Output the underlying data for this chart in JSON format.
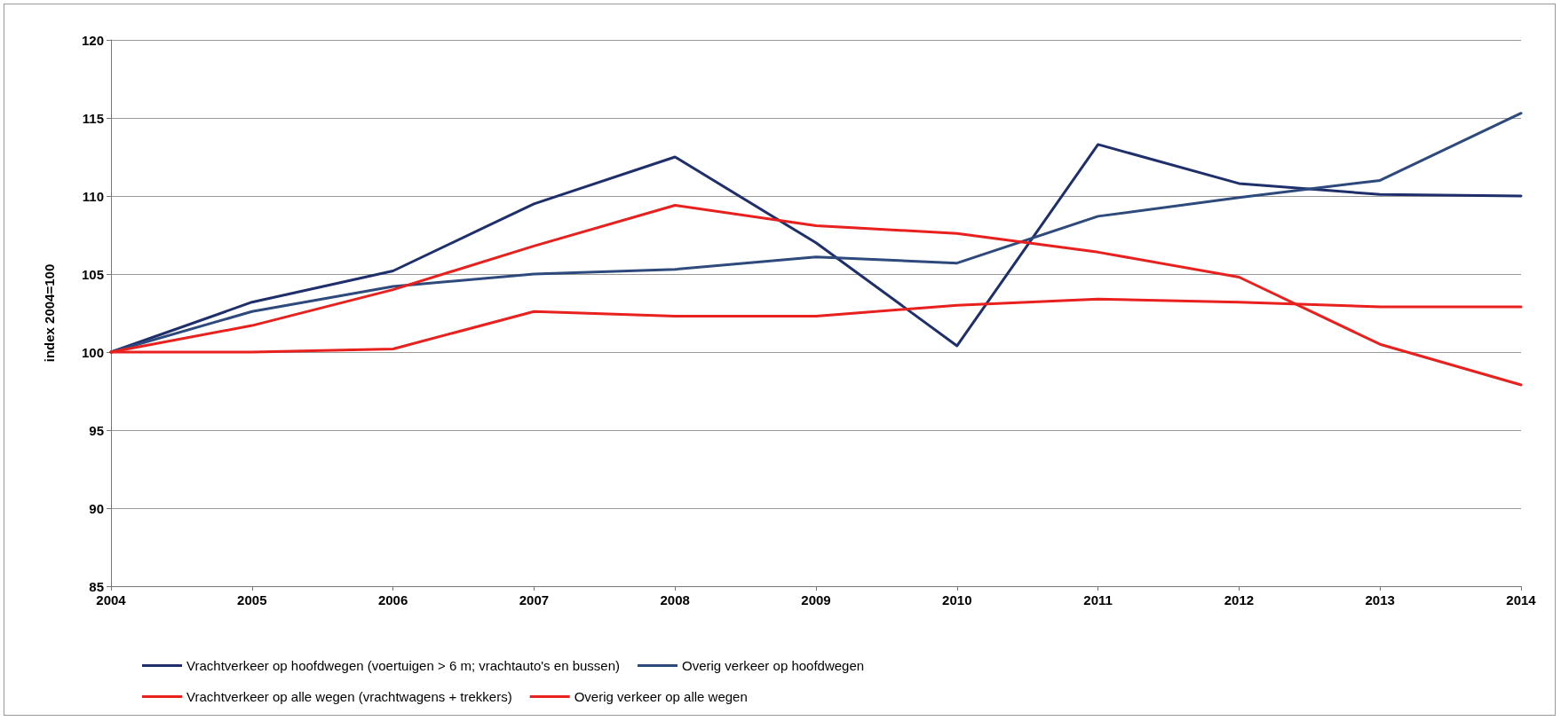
{
  "chart_data": {
    "type": "line",
    "ylabel": "index 2004=100",
    "categories": [
      "2004",
      "2005",
      "2006",
      "2007",
      "2008",
      "2009",
      "2010",
      "2011",
      "2012",
      "2013",
      "2014"
    ],
    "series": [
      {
        "name": "Vrachtverkeer op hoofdwegen (voertuigen > 6 m; vrachtauto's en bussen)",
        "color": "#1f2f6b",
        "values": [
          100,
          103.2,
          105.2,
          109.5,
          112.5,
          107.0,
          100.4,
          113.3,
          110.8,
          110.1,
          110.0
        ]
      },
      {
        "name": "Overig verkeer op hoofdwegen",
        "color": "#2e4a7d",
        "values": [
          100,
          102.6,
          104.2,
          105.0,
          105.3,
          106.1,
          105.7,
          108.7,
          109.9,
          111.0,
          115.3
        ]
      },
      {
        "name": "Vrachtverkeer op alle wegen (vrachtwagens + trekkers)",
        "color": "#e8201e",
        "values": [
          100,
          101.7,
          104.0,
          106.8,
          109.4,
          108.1,
          107.6,
          106.4,
          104.8,
          100.5,
          97.9
        ]
      },
      {
        "name": "Overig verkeer op alle wegen",
        "color": "#e8201e",
        "values": [
          100,
          100.0,
          100.2,
          102.6,
          102.3,
          102.3,
          103.0,
          103.4,
          103.2,
          102.9,
          102.9
        ]
      }
    ],
    "ylim": [
      85,
      120
    ],
    "yticks": [
      85,
      90,
      95,
      100,
      105,
      110,
      115,
      120
    ],
    "grid": "y",
    "legend": "bottom",
    "marker": "none",
    "line_style": "solid"
  }
}
